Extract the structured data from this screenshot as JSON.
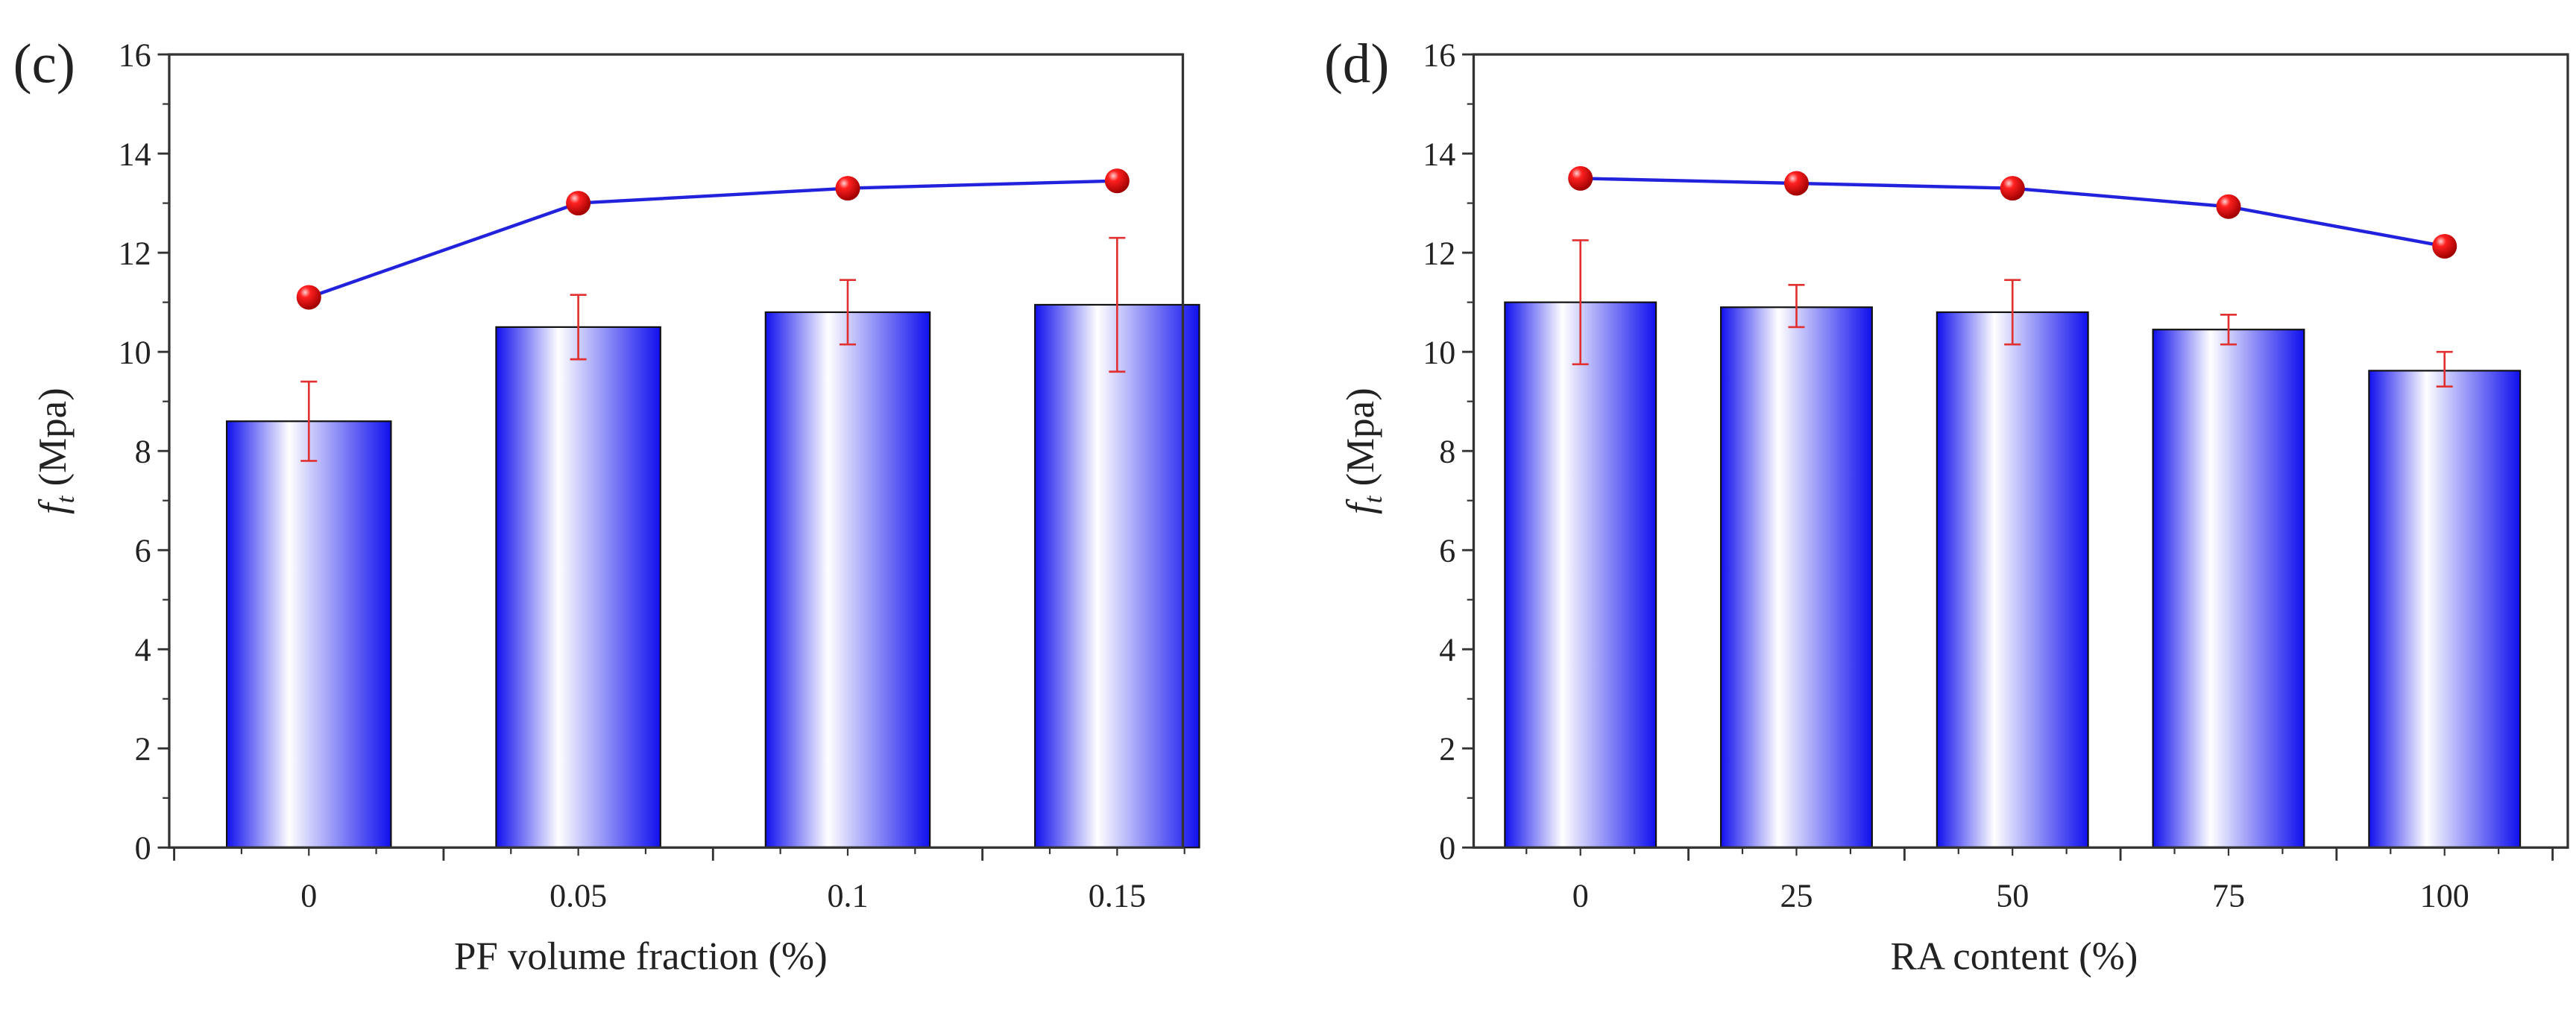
{
  "colors": {
    "bar": "#1414f0",
    "line": "#2222dd",
    "marker": "#ee0000",
    "error": "#e03030",
    "axis": "#333333"
  },
  "chart_data": [
    {
      "type": "bar",
      "panel_label": "(c)",
      "xlabel": "PF volume fraction (%)",
      "ylabel_main": "f",
      "ylabel_sub": "t",
      "ylabel_unit": " (Mpa)",
      "ylim": [
        0,
        16
      ],
      "yticks": [
        0,
        2,
        4,
        6,
        8,
        10,
        12,
        14,
        16
      ],
      "categories": [
        "0",
        "0.05",
        "0.1",
        "0.15"
      ],
      "series": [
        {
          "name": "bar",
          "type": "bar",
          "values": [
            8.6,
            10.5,
            10.8,
            10.95
          ],
          "error_low": [
            7.8,
            9.85,
            10.15,
            9.6
          ],
          "error_high": [
            9.4,
            11.15,
            11.45,
            12.3
          ]
        },
        {
          "name": "line",
          "type": "line",
          "values": [
            11.1,
            13.0,
            13.3,
            13.45
          ]
        }
      ]
    },
    {
      "type": "bar",
      "panel_label": "(d)",
      "xlabel": "RA content (%)",
      "ylabel_main": "f",
      "ylabel_sub": "t",
      "ylabel_unit": " (Mpa)",
      "ylim": [
        0,
        16
      ],
      "yticks": [
        0,
        2,
        4,
        6,
        8,
        10,
        12,
        14,
        16
      ],
      "categories": [
        "0",
        "25",
        "50",
        "75",
        "100"
      ],
      "series": [
        {
          "name": "bar",
          "type": "bar",
          "values": [
            11.0,
            10.9,
            10.8,
            10.45,
            9.62
          ],
          "error_low": [
            9.75,
            10.5,
            10.15,
            10.15,
            9.3
          ],
          "error_high": [
            12.25,
            11.35,
            11.45,
            10.75,
            10.0
          ]
        },
        {
          "name": "line",
          "type": "line",
          "values": [
            13.5,
            13.4,
            13.3,
            12.93,
            12.13
          ]
        }
      ]
    }
  ]
}
